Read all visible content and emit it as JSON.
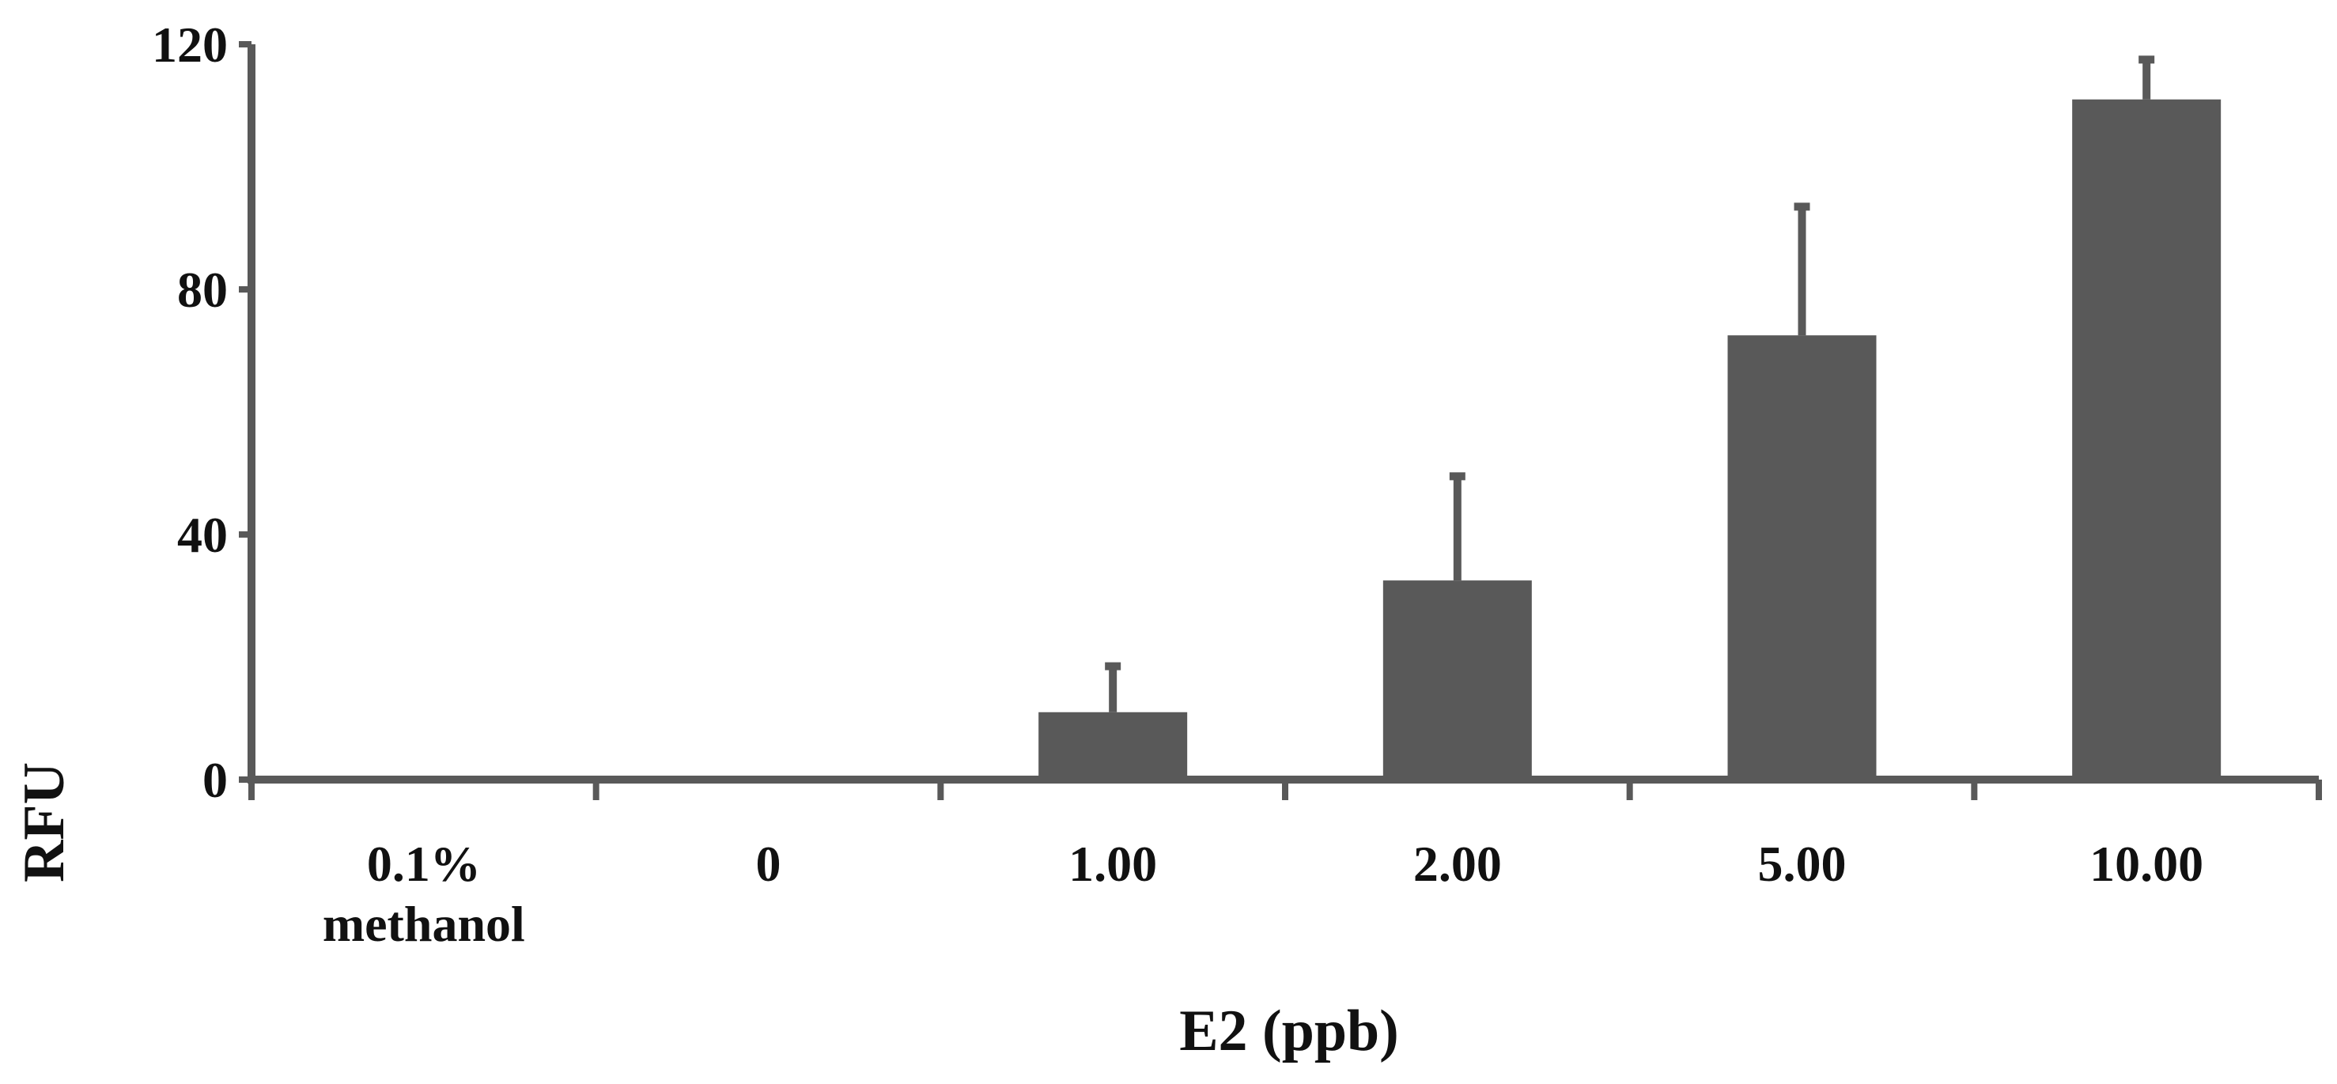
{
  "chart_data": {
    "type": "bar",
    "title": "",
    "xlabel": "E2 (ppb)",
    "ylabel": "RFU",
    "categories": [
      [
        "0.1%",
        "methanol"
      ],
      [
        "0"
      ],
      [
        "1.00"
      ],
      [
        "2.00"
      ],
      [
        "5.00"
      ],
      [
        "10.00"
      ]
    ],
    "values": [
      0,
      0,
      11,
      32.5,
      72.5,
      111
    ],
    "error_upper": [
      0,
      0,
      7.5,
      17,
      21,
      6.5
    ],
    "ylim": [
      0,
      120
    ],
    "yticks": [
      "0",
      "40",
      "80",
      "120"
    ],
    "ytick_values": [
      0,
      40,
      80,
      120
    ],
    "grid": false,
    "legend": "none",
    "colors": {
      "bar": "#595959",
      "axis": "#595959",
      "error": "#595959"
    }
  }
}
